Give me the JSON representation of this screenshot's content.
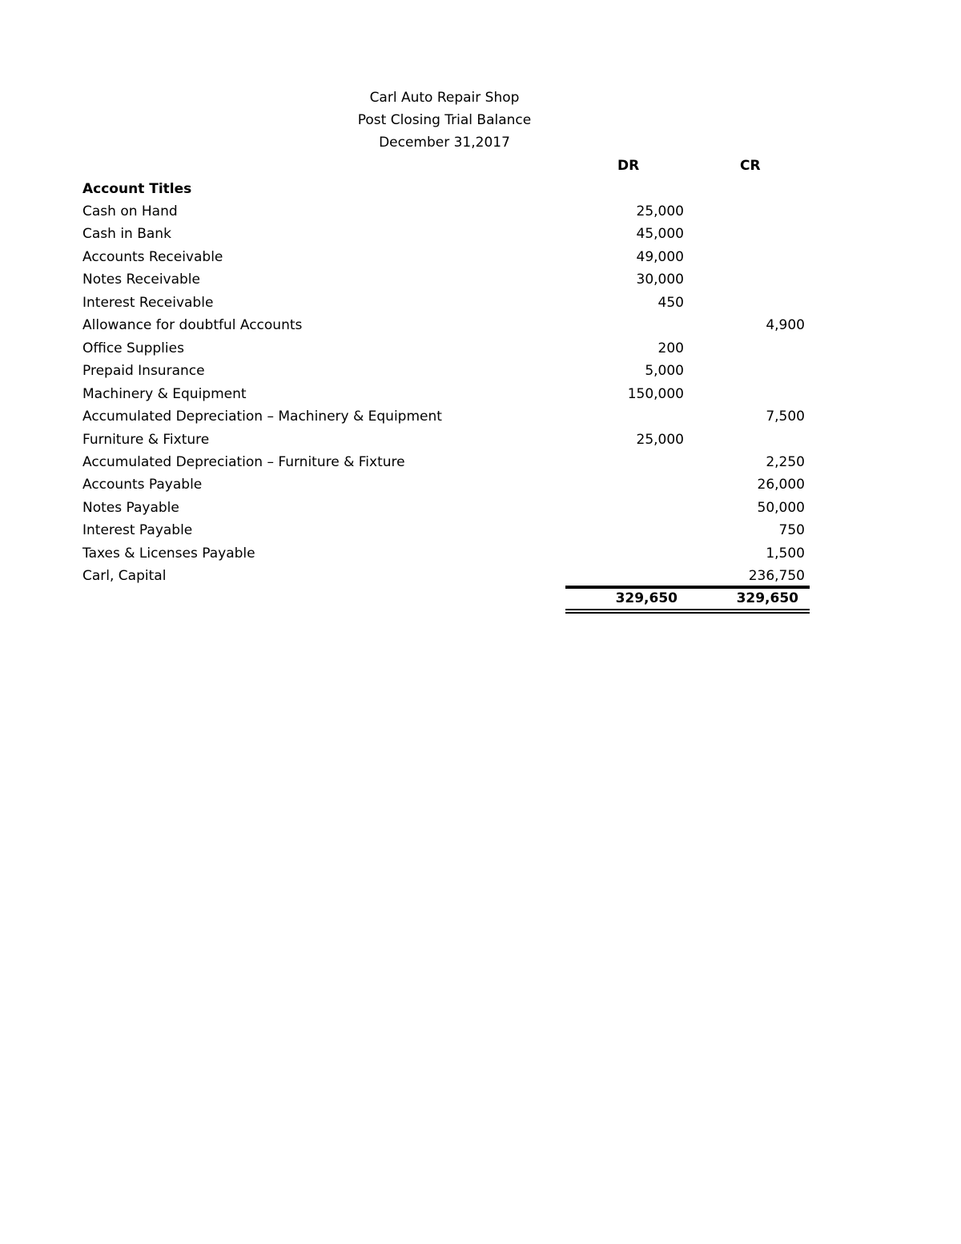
{
  "header": {
    "company": "Carl Auto Repair Shop",
    "report": "Post Closing Trial Balance",
    "date": "December 31,2017"
  },
  "columns": {
    "dr": "DR",
    "cr": "CR",
    "title": "Account Titles"
  },
  "rows": [
    {
      "title": "Cash on Hand",
      "dr": "25,000",
      "cr": ""
    },
    {
      "title": "Cash in Bank",
      "dr": "45,000",
      "cr": ""
    },
    {
      "title": "Accounts Receivable",
      "dr": "49,000",
      "cr": ""
    },
    {
      "title": "Notes Receivable",
      "dr": "30,000",
      "cr": ""
    },
    {
      "title": "Interest Receivable",
      "dr": "450",
      "cr": ""
    },
    {
      "title": "Allowance for doubtful Accounts",
      "dr": "",
      "cr": "4,900"
    },
    {
      "title": "Office Supplies",
      "dr": "200",
      "cr": ""
    },
    {
      "title": "Prepaid Insurance",
      "dr": "5,000",
      "cr": ""
    },
    {
      "title": "Machinery & Equipment",
      "dr": "150,000",
      "cr": ""
    },
    {
      "title": "Accumulated Depreciation – Machinery & Equipment",
      "dr": "",
      "cr": "7,500"
    },
    {
      "title": "Furniture & Fixture",
      "dr": "25,000",
      "cr": ""
    },
    {
      "title": "Accumulated Depreciation – Furniture & Fixture",
      "dr": "",
      "cr": "2,250"
    },
    {
      "title": "Accounts Payable",
      "dr": "",
      "cr": "26,000"
    },
    {
      "title": "Notes Payable",
      "dr": "",
      "cr": "50,000"
    },
    {
      "title": "Interest Payable",
      "dr": "",
      "cr": "750"
    },
    {
      "title": "Taxes & Licenses Payable",
      "dr": "",
      "cr": "1,500"
    },
    {
      "title": "Carl, Capital",
      "dr": "",
      "cr": "236,750"
    }
  ],
  "totals": {
    "dr": "329,650",
    "cr": "329,650"
  }
}
